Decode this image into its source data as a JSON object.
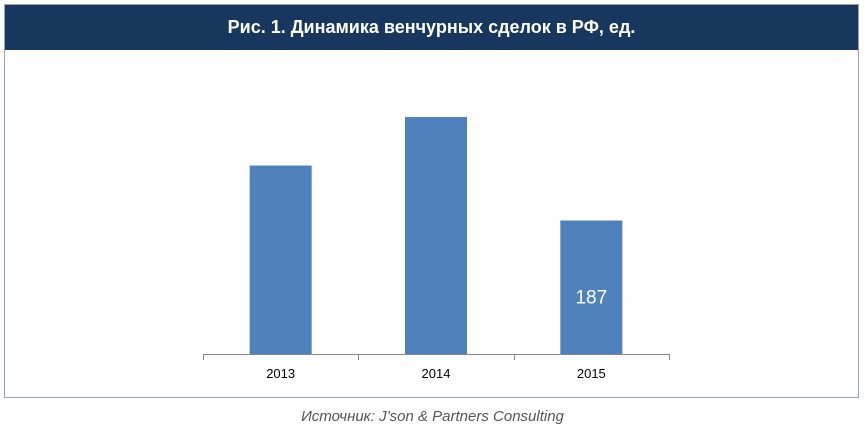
{
  "title": "Рис. 1. Динамика венчурных сделок в РФ, ед.",
  "source": "Источник: J’son & Partners Consulting",
  "colors": {
    "title_bg": "#17375e",
    "bar": "#4f81bd",
    "axis": "#868686"
  },
  "chart_data": {
    "type": "bar",
    "title": "Рис. 1. Динамика венчурных сделок в РФ, ед.",
    "categories": [
      "2013",
      "2014",
      "2015"
    ],
    "values": [
      264,
      332,
      187
    ],
    "data_labels": [
      null,
      null,
      "187"
    ],
    "xlabel": "",
    "ylabel": "",
    "ylim": [
      0,
      350
    ],
    "grid": false,
    "legend": "none"
  }
}
